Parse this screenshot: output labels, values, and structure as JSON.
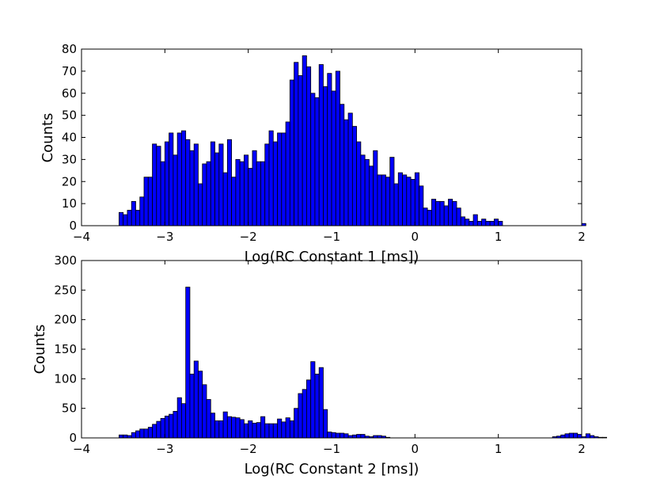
{
  "chart_data": [
    {
      "type": "bar",
      "subtype": "histogram",
      "xlabel": "Log(RC Constant 1 [ms])",
      "ylabel": "Counts",
      "xlim": [
        -4,
        2
      ],
      "ylim": [
        0,
        80
      ],
      "xticks": [
        -4,
        -3,
        -2,
        -1,
        0,
        1,
        2
      ],
      "yticks": [
        0,
        10,
        20,
        30,
        40,
        50,
        60,
        70,
        80
      ],
      "bin_start": -3.55,
      "bin_width": 0.05,
      "values": [
        6,
        5,
        7,
        11,
        7,
        13,
        22,
        22,
        37,
        36,
        29,
        38,
        42,
        32,
        42,
        43,
        39,
        34,
        37,
        19,
        28,
        29,
        38,
        33,
        37,
        24,
        39,
        22,
        30,
        29,
        32,
        26,
        34,
        29,
        29,
        37,
        43,
        38,
        42,
        42,
        47,
        66,
        74,
        68,
        77,
        72,
        60,
        58,
        73,
        63,
        69,
        61,
        70,
        55,
        48,
        51,
        45,
        38,
        32,
        30,
        27,
        34,
        23,
        23,
        22,
        31,
        19,
        24,
        23,
        22,
        21,
        24,
        18,
        8,
        7,
        12,
        11,
        11,
        9,
        12,
        11,
        8,
        4,
        3,
        2,
        5,
        2,
        3,
        2,
        2,
        3,
        2,
        0,
        0,
        0,
        0,
        0,
        0,
        0,
        0,
        0,
        0,
        0,
        0,
        0,
        0,
        0,
        0,
        0,
        0,
        0,
        1
      ]
    },
    {
      "type": "bar",
      "subtype": "histogram",
      "xlabel": "Log(RC Constant 2 [ms])",
      "ylabel": "Counts",
      "xlim": [
        -4,
        2
      ],
      "ylim": [
        0,
        300
      ],
      "xticks": [
        -4,
        -3,
        -2,
        -1,
        0,
        1,
        2
      ],
      "yticks": [
        0,
        50,
        100,
        150,
        200,
        250,
        300
      ],
      "bin_start": -3.55,
      "bin_width": 0.05,
      "values": [
        5,
        5,
        4,
        9,
        12,
        15,
        15,
        18,
        23,
        28,
        33,
        37,
        40,
        45,
        68,
        58,
        255,
        108,
        130,
        113,
        90,
        65,
        42,
        29,
        29,
        44,
        36,
        35,
        34,
        31,
        24,
        29,
        25,
        26,
        36,
        24,
        24,
        24,
        32,
        27,
        34,
        29,
        50,
        75,
        82,
        98,
        129,
        108,
        119,
        48,
        10,
        9,
        8,
        8,
        7,
        4,
        5,
        6,
        6,
        3,
        2,
        4,
        4,
        3,
        1,
        0,
        0,
        0,
        0,
        0,
        0,
        0,
        0,
        0,
        0,
        0,
        0,
        0,
        0,
        0,
        0,
        0,
        0,
        0,
        0,
        0,
        0,
        0,
        0,
        0,
        0,
        0,
        0,
        0,
        0,
        0,
        0,
        0,
        0,
        0,
        0,
        0,
        0,
        0,
        2,
        3,
        5,
        7,
        8,
        8,
        6,
        2,
        7,
        4,
        2,
        1,
        1
      ]
    }
  ]
}
